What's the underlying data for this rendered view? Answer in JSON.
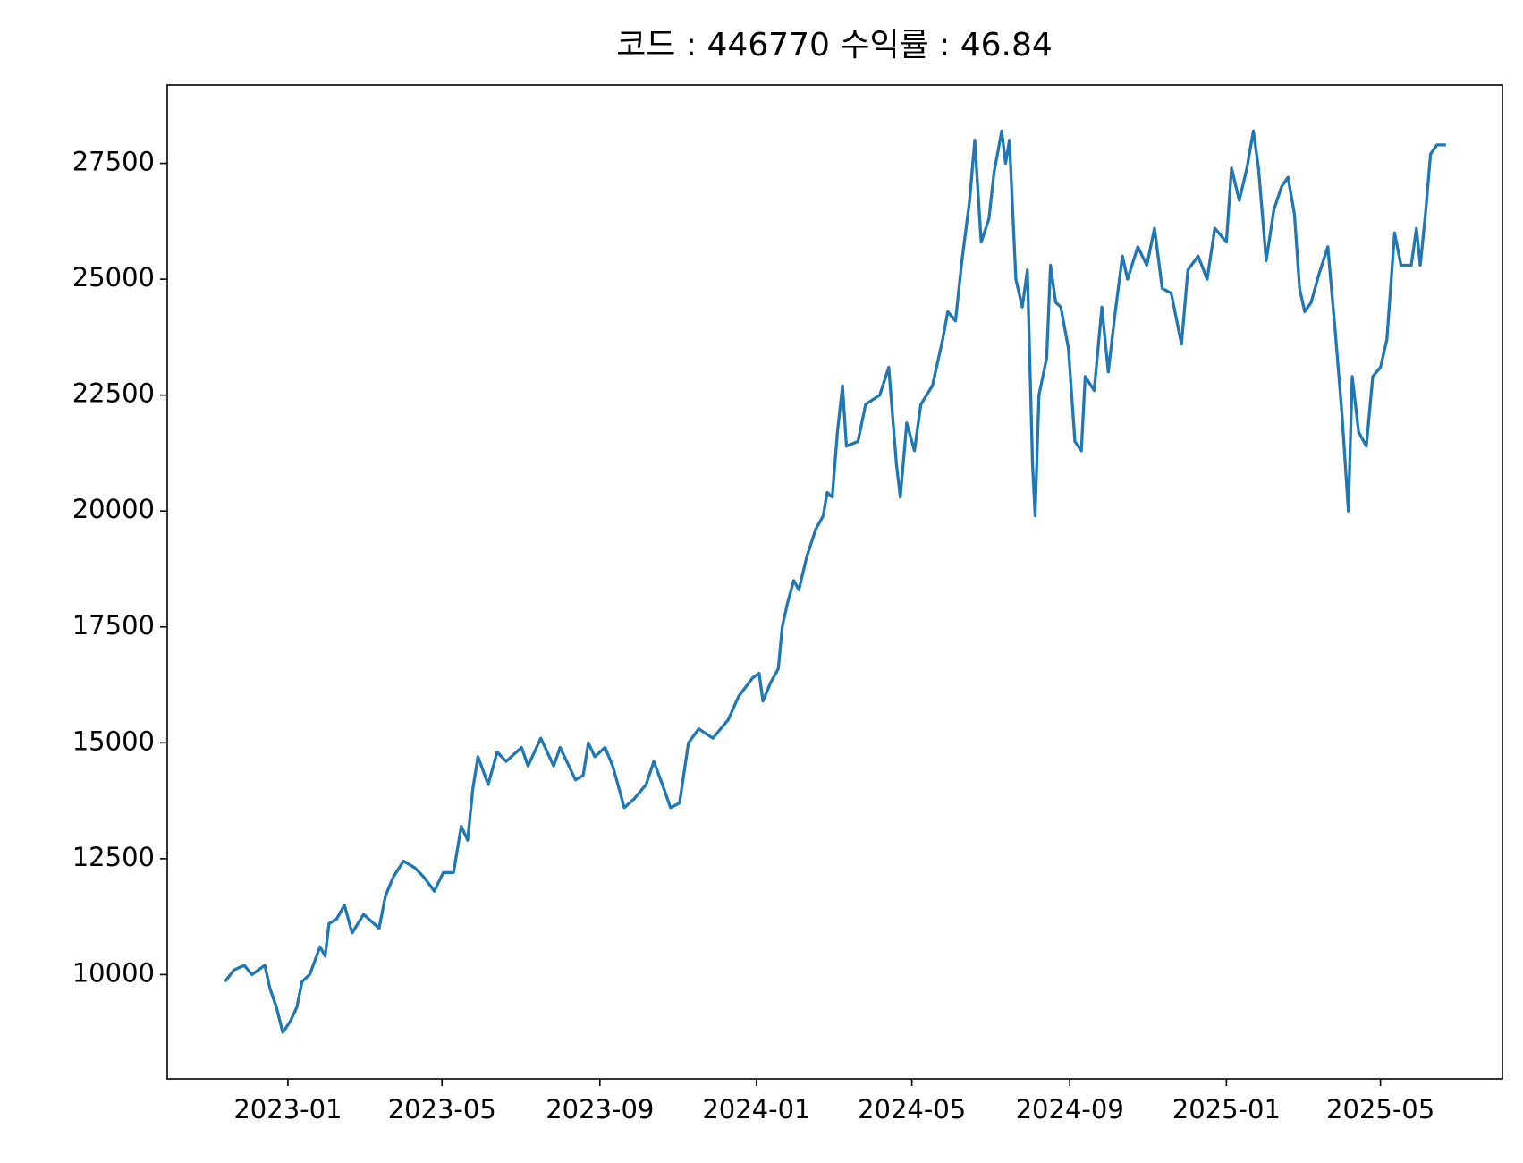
{
  "chart_data": {
    "type": "line",
    "title": "코드 : 446770 수익률 : 46.84",
    "x": [
      "2022-11-13",
      "2022-11-20",
      "2022-11-28",
      "2022-12-04",
      "2022-12-09",
      "2022-12-14",
      "2022-12-18",
      "2022-12-23",
      "2022-12-28",
      "2023-01-03",
      "2023-01-08",
      "2023-01-12",
      "2023-01-18",
      "2023-01-26",
      "2023-01-30",
      "2023-02-02",
      "2023-02-08",
      "2023-02-14",
      "2023-02-20",
      "2023-03-01",
      "2023-03-13",
      "2023-03-18",
      "2023-03-24",
      "2023-04-01",
      "2023-04-10",
      "2023-04-17",
      "2023-04-25",
      "2023-05-02",
      "2023-05-10",
      "2023-05-16",
      "2023-05-21",
      "2023-05-25",
      "2023-05-29",
      "2023-06-06",
      "2023-06-13",
      "2023-06-20",
      "2023-07-02",
      "2023-07-07",
      "2023-07-17",
      "2023-07-27",
      "2023-08-01",
      "2023-08-13",
      "2023-08-19",
      "2023-08-23",
      "2023-08-28",
      "2023-09-05",
      "2023-09-11",
      "2023-09-20",
      "2023-09-28",
      "2023-10-07",
      "2023-10-13",
      "2023-10-21",
      "2023-10-26",
      "2023-11-02",
      "2023-11-09",
      "2023-11-17",
      "2023-11-28",
      "2023-12-10",
      "2023-12-18",
      "2023-12-29",
      "2024-01-03",
      "2024-01-06",
      "2024-01-12",
      "2024-01-18",
      "2024-01-21",
      "2024-01-25",
      "2024-01-30",
      "2024-02-03",
      "2024-02-09",
      "2024-02-16",
      "2024-02-22",
      "2024-02-25",
      "2024-02-29",
      "2024-03-04",
      "2024-03-08",
      "2024-03-11",
      "2024-03-20",
      "2024-03-26",
      "2024-04-06",
      "2024-04-13",
      "2024-04-19",
      "2024-04-22",
      "2024-04-27",
      "2024-05-03",
      "2024-05-08",
      "2024-05-17",
      "2024-05-25",
      "2024-05-29",
      "2024-06-04",
      "2024-06-09",
      "2024-06-15",
      "2024-06-19",
      "2024-06-24",
      "2024-06-30",
      "2024-07-04",
      "2024-07-10",
      "2024-07-13",
      "2024-07-16",
      "2024-07-21",
      "2024-07-26",
      "2024-07-30",
      "2024-08-03",
      "2024-08-05",
      "2024-08-08",
      "2024-08-14",
      "2024-08-17",
      "2024-08-21",
      "2024-08-25",
      "2024-08-31",
      "2024-09-05",
      "2024-09-10",
      "2024-09-13",
      "2024-09-20",
      "2024-09-26",
      "2024-10-01",
      "2024-10-06",
      "2024-10-12",
      "2024-10-16",
      "2024-10-24",
      "2024-10-31",
      "2024-11-06",
      "2024-11-12",
      "2024-11-19",
      "2024-11-27",
      "2024-12-02",
      "2024-12-10",
      "2024-12-17",
      "2024-12-23",
      "2025-01-01",
      "2025-01-05",
      "2025-01-11",
      "2025-01-17",
      "2025-01-22",
      "2025-01-26",
      "2025-02-01",
      "2025-02-07",
      "2025-02-13",
      "2025-02-18",
      "2025-02-23",
      "2025-02-27",
      "2025-03-03",
      "2025-03-08",
      "2025-03-14",
      "2025-03-21",
      "2025-03-27",
      "2025-04-01",
      "2025-04-06",
      "2025-04-09",
      "2025-04-14",
      "2025-04-20",
      "2025-04-25",
      "2025-05-01",
      "2025-05-06",
      "2025-05-12",
      "2025-05-17",
      "2025-05-25",
      "2025-05-29",
      "2025-06-01",
      "2025-06-05",
      "2025-06-09",
      "2025-06-14",
      "2025-06-21"
    ],
    "series": [
      {
        "name": "446770",
        "color": "#1f77b4",
        "values": [
          9850,
          10100,
          10200,
          10000,
          10100,
          10200,
          9700,
          9300,
          8750,
          9000,
          9300,
          9850,
          10000,
          10600,
          10400,
          11100,
          11200,
          11500,
          10900,
          11300,
          11000,
          11700,
          12100,
          12450,
          12300,
          12100,
          11800,
          12200,
          12200,
          13200,
          12900,
          14000,
          14700,
          14100,
          14800,
          14600,
          14900,
          14500,
          15100,
          14500,
          14900,
          14200,
          14300,
          15000,
          14700,
          14900,
          14500,
          13600,
          13800,
          14100,
          14600,
          14000,
          13600,
          13700,
          15000,
          15300,
          15100,
          15500,
          16000,
          16400,
          16500,
          15900,
          16300,
          16600,
          17500,
          18000,
          18500,
          18300,
          19000,
          19600,
          19900,
          20400,
          20300,
          21700,
          22700,
          21400,
          21500,
          22300,
          22500,
          23100,
          21000,
          20300,
          21900,
          21300,
          22300,
          22700,
          23700,
          24300,
          24100,
          25400,
          26700,
          28000,
          25800,
          26300,
          27300,
          28200,
          27500,
          28000,
          25000,
          24400,
          25200,
          21000,
          19900,
          22500,
          23300,
          25300,
          24500,
          24400,
          23500,
          21500,
          21300,
          22900,
          22600,
          24400,
          23000,
          24200,
          25500,
          25000,
          25700,
          25300,
          26100,
          24800,
          24700,
          23600,
          25200,
          25500,
          25000,
          26100,
          25800,
          27400,
          26700,
          27400,
          28200,
          27400,
          25400,
          26500,
          27000,
          27200,
          26400,
          24800,
          24300,
          24500,
          25100,
          25700,
          23800,
          22100,
          20000,
          22900,
          21700,
          21400,
          22900,
          23100,
          23700,
          26000,
          25300,
          25300,
          26100,
          25300,
          26400,
          27700,
          27900,
          27900
        ]
      }
    ],
    "xlim": [
      "2022-09-29",
      "2025-08-04"
    ],
    "xticks": [
      "2023-01",
      "2023-05",
      "2023-09",
      "2024-01",
      "2024-05",
      "2024-09",
      "2025-01",
      "2025-05"
    ],
    "ylim": [
      7750,
      29190
    ],
    "yticks": [
      10000,
      12500,
      15000,
      17500,
      20000,
      22500,
      25000,
      27500
    ],
    "grid": false
  }
}
